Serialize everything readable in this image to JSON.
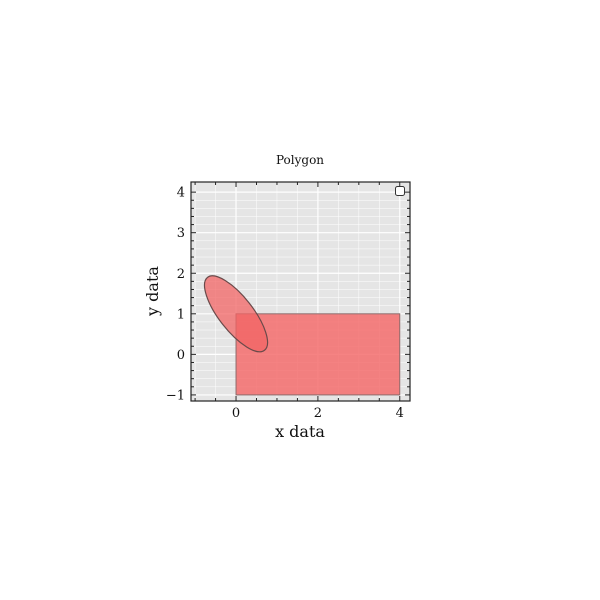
{
  "chart_data": {
    "type": "area",
    "title": "Polygon",
    "xlabel": "x data",
    "ylabel": "y data",
    "xlim": [
      -1.1,
      4.25
    ],
    "ylim": [
      -1.15,
      4.25
    ],
    "xticks": [
      0,
      2,
      4
    ],
    "xtick_labels": [
      "0",
      "2",
      "4"
    ],
    "yticks": [
      -1,
      0,
      1,
      2,
      3,
      4
    ],
    "ytick_labels": [
      "−1",
      "0",
      "1",
      "2",
      "3",
      "4"
    ],
    "grid": true,
    "legend": "top-right",
    "shapes": [
      {
        "kind": "rectangle",
        "x_range": [
          0,
          4
        ],
        "y_range": [
          -1,
          1
        ],
        "fill": "#f46d6d",
        "edge": "#8a6a6a"
      },
      {
        "kind": "ellipse",
        "center": [
          0,
          1
        ],
        "semi_axis_major": 1.13,
        "semi_axis_minor": 0.42,
        "angle_deg": -52,
        "fill": "#f26464",
        "edge": "#6a4a4a"
      }
    ],
    "colors": {
      "plot_background": "#e5e5e5",
      "grid": "#ffffff",
      "overlap": "#ff5555"
    }
  }
}
